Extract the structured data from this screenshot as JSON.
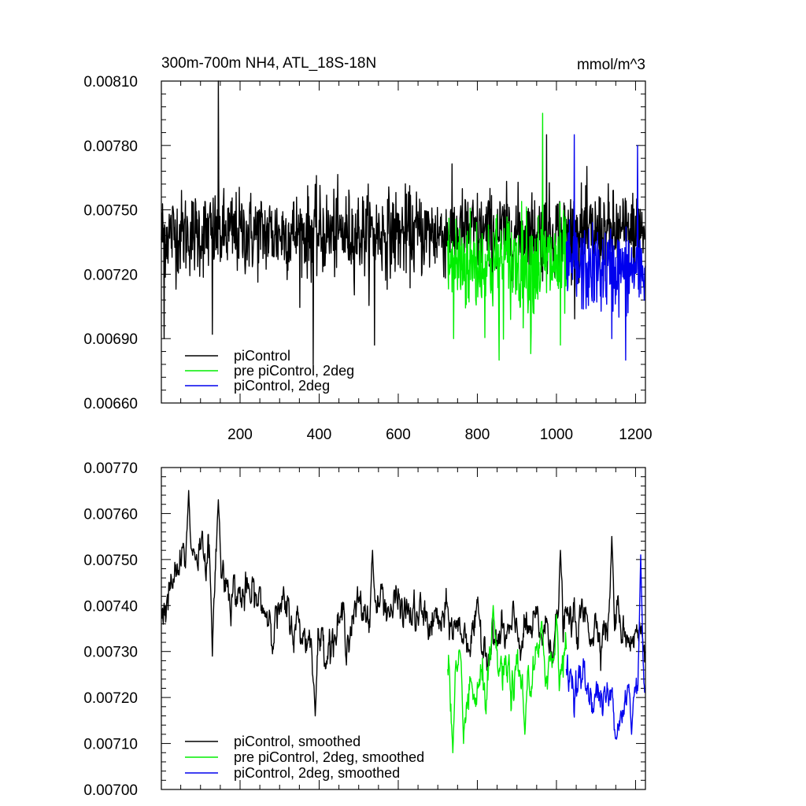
{
  "chart_data": [
    {
      "type": "line",
      "title": "300m-700m NH4, ATL_18S-18N",
      "units": "mmol/m^3",
      "xlim": [
        1,
        1225
      ],
      "ylim": [
        0.0066,
        0.0081
      ],
      "yticks": [
        "0.00660",
        "0.00690",
        "0.00720",
        "0.00750",
        "0.00780",
        "0.00810"
      ],
      "xticks": [
        "200",
        "400",
        "600",
        "800",
        "1000",
        "1200"
      ],
      "grid": false,
      "legend_position": "bottom-left",
      "series": [
        {
          "name": "piControl",
          "color": "#000000",
          "x_start": 1,
          "x_end": 1225,
          "mean": 0.00739,
          "amplitude": 0.00018,
          "spikes": [
            [
              145,
              0.0081
            ],
            [
              385,
              0.00678
            ],
            [
              540,
              0.00687
            ],
            [
              130,
              0.00692
            ],
            [
              8,
              0.0069
            ],
            [
              975,
              0.00785
            ]
          ]
        },
        {
          "name": "pre piControl, 2deg",
          "color": "#00ee00",
          "x_start": 725,
          "x_end": 1025,
          "mean": 0.00725,
          "amplitude": 0.00022,
          "spikes": [
            [
              965,
              0.00795
            ],
            [
              855,
              0.0068
            ],
            [
              935,
              0.00683
            ],
            [
              1010,
              0.00687
            ],
            [
              740,
              0.0069
            ]
          ]
        },
        {
          "name": "piControl, 2deg",
          "color": "#0000ee",
          "x_start": 1025,
          "x_end": 1225,
          "mean": 0.00722,
          "amplitude": 0.00018,
          "spikes": [
            [
              1045,
              0.00785
            ],
            [
              1205,
              0.0078
            ],
            [
              1175,
              0.0068
            ],
            [
              1140,
              0.0069
            ]
          ]
        }
      ]
    },
    {
      "type": "line",
      "title": "",
      "xlim": [
        1,
        1225
      ],
      "ylim": [
        0.007,
        0.0077
      ],
      "yticks": [
        "0.00700",
        "0.00710",
        "0.00720",
        "0.00730",
        "0.00740",
        "0.00750",
        "0.00760",
        "0.00770"
      ],
      "grid": false,
      "legend_position": "bottom-left",
      "series": [
        {
          "name": "piControl, smoothed",
          "color": "#000000",
          "x_start": 1,
          "x_end": 1225,
          "trend": [
            [
              1,
              0.00738
            ],
            [
              50,
              0.00748
            ],
            [
              100,
              0.00754
            ],
            [
              150,
              0.00748
            ],
            [
              200,
              0.00742
            ],
            [
              300,
              0.00738
            ],
            [
              400,
              0.00732
            ],
            [
              500,
              0.00738
            ],
            [
              560,
              0.00741
            ],
            [
              650,
              0.00737
            ],
            [
              750,
              0.00735
            ],
            [
              850,
              0.00732
            ],
            [
              950,
              0.00734
            ],
            [
              1050,
              0.00736
            ],
            [
              1150,
              0.00737
            ],
            [
              1225,
              0.00732
            ]
          ],
          "amplitude": 4e-05,
          "spikes": [
            [
              70,
              0.00765
            ],
            [
              145,
              0.00763
            ],
            [
              390,
              0.00716
            ],
            [
              535,
              0.00752
            ],
            [
              1010,
              0.00752
            ],
            [
              1140,
              0.00755
            ],
            [
              130,
              0.00729
            ]
          ]
        },
        {
          "name": "pre piControl, 2deg, smoothed",
          "color": "#00ee00",
          "x_start": 725,
          "x_end": 1025,
          "trend": [
            [
              725,
              0.00728
            ],
            [
              775,
              0.00718
            ],
            [
              850,
              0.00725
            ],
            [
              900,
              0.00722
            ],
            [
              960,
              0.00728
            ],
            [
              1025,
              0.00729
            ]
          ],
          "amplitude": 4.5e-05,
          "spikes": [
            [
              738,
              0.00708
            ],
            [
              765,
              0.0071
            ],
            [
              840,
              0.0074
            ],
            [
              920,
              0.00712
            ],
            [
              1000,
              0.00738
            ]
          ]
        },
        {
          "name": "piControl, 2deg, smoothed",
          "color": "#0000ee",
          "x_start": 1025,
          "x_end": 1225,
          "trend": [
            [
              1025,
              0.00726
            ],
            [
              1080,
              0.00722
            ],
            [
              1150,
              0.00718
            ],
            [
              1200,
              0.00722
            ],
            [
              1225,
              0.00724
            ]
          ],
          "amplitude": 4e-05,
          "spikes": [
            [
              1213,
              0.00751
            ],
            [
              1150,
              0.00711
            ],
            [
              1190,
              0.00712
            ]
          ]
        }
      ]
    }
  ]
}
